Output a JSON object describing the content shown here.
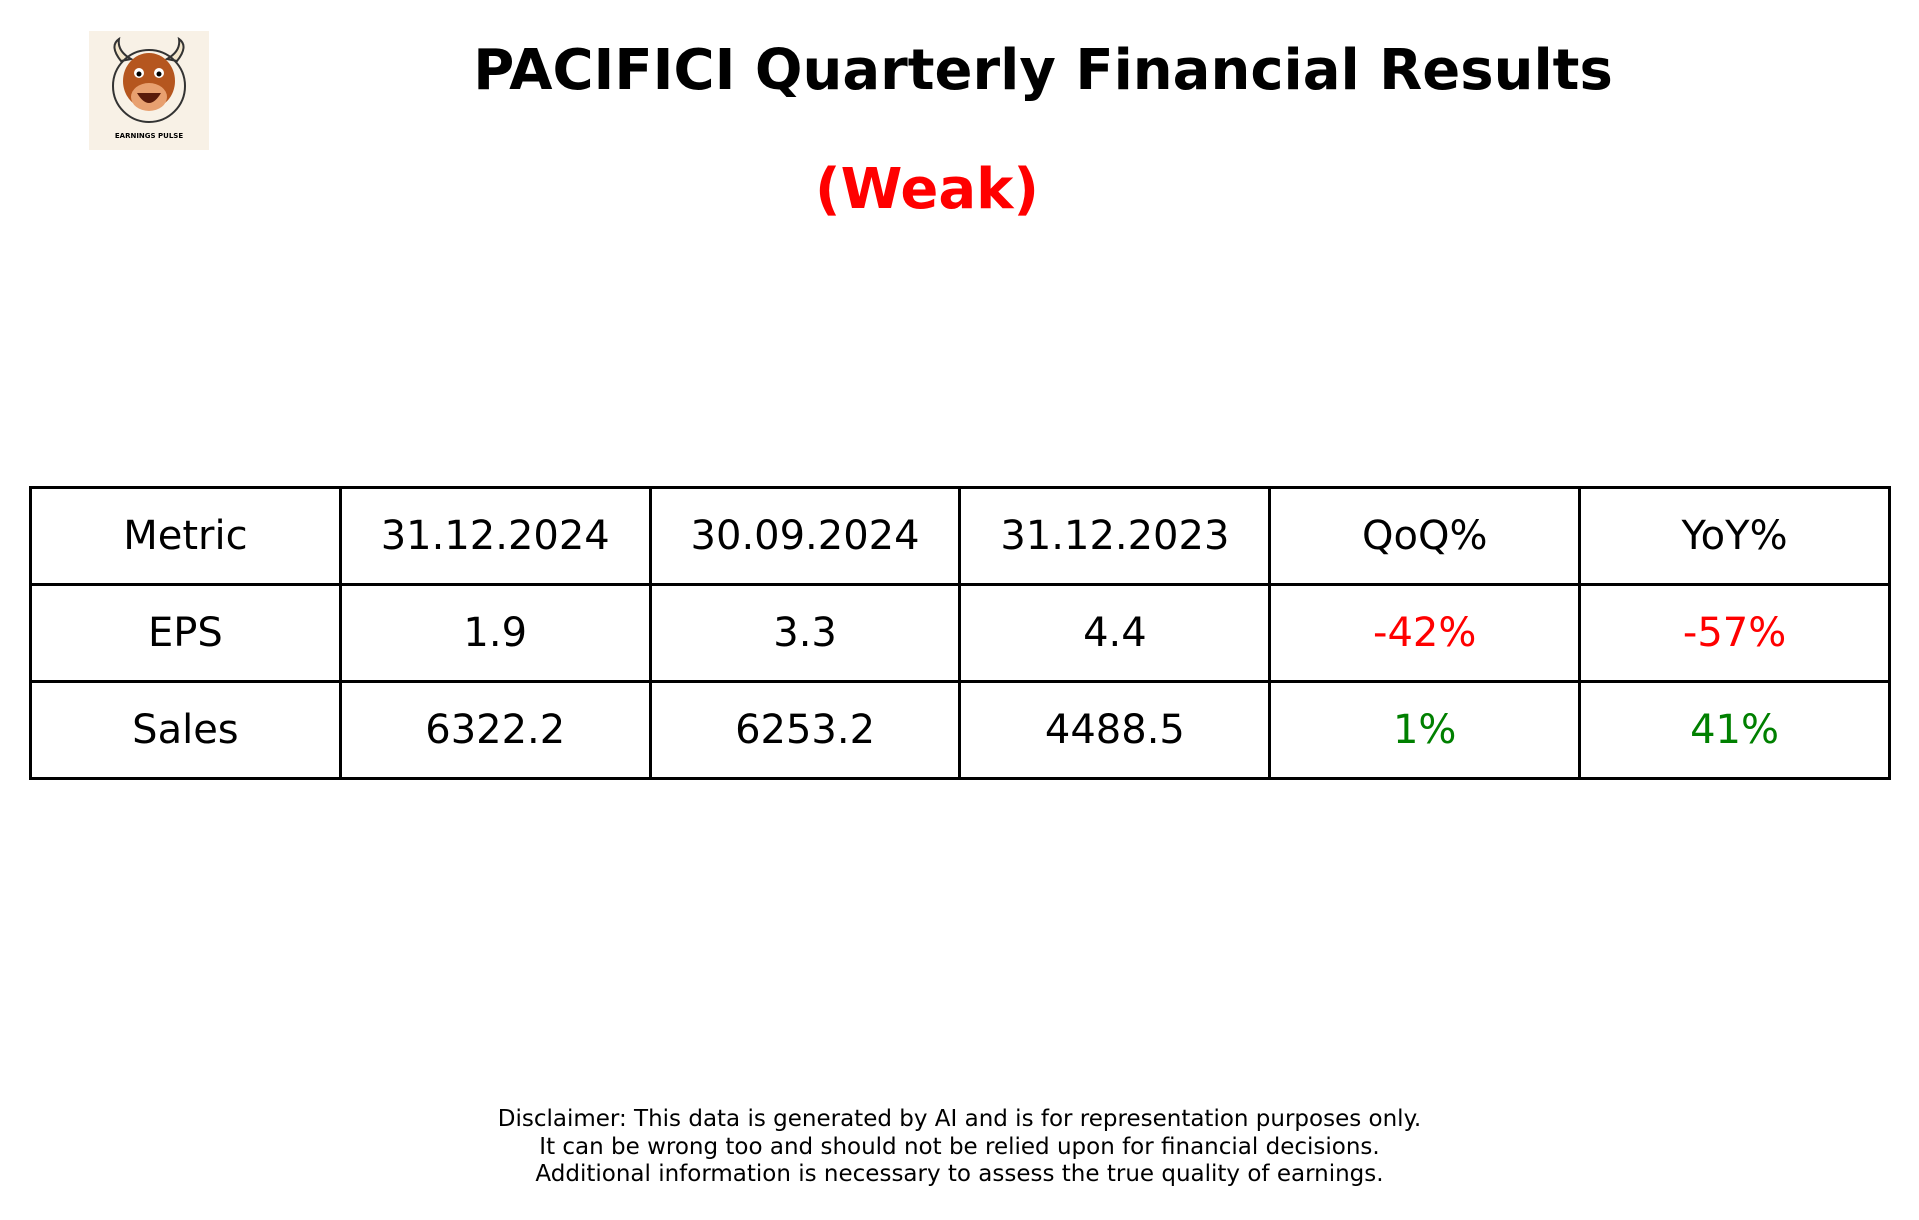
{
  "logo": {
    "caption": "EARNINGS PULSE"
  },
  "header": {
    "title": "PACIFICI Quarterly Financial Results",
    "rating": "(Weak)"
  },
  "table": {
    "columns": [
      "Metric",
      "31.12.2024",
      "30.09.2024",
      "31.12.2023",
      "QoQ%",
      "YoY%"
    ],
    "rows": [
      [
        "EPS",
        "1.9",
        "3.3",
        "4.4",
        "-42%",
        "-57%"
      ],
      [
        "Sales",
        "6322.2",
        "6253.2",
        "4488.5",
        "1%",
        "41%"
      ]
    ]
  },
  "disclaimer": [
    "Disclaimer: This data is generated by AI and is for representation purposes only.",
    "It can be wrong too and should not be relied upon for financial decisions.",
    "Additional information is necessary to assess the true quality of earnings."
  ]
}
